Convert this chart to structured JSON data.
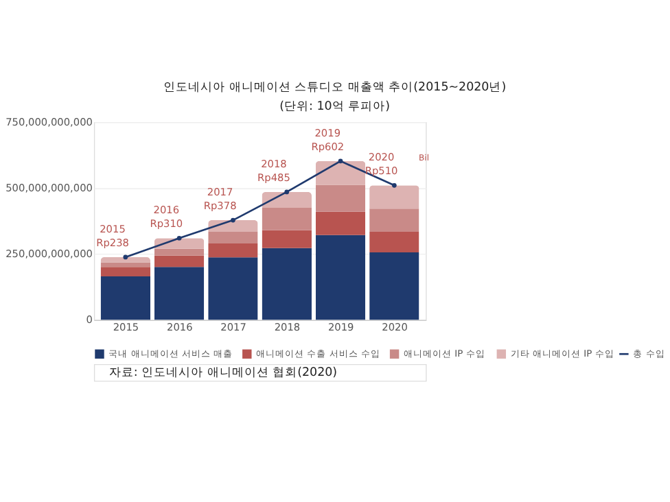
{
  "chart_data": {
    "type": "bar",
    "title": "인도네시아 애니메이션 스튜디오 매출액 추이(2015~2020년)",
    "subtitle": "(단위: 10억 루피아)",
    "categories": [
      "2015",
      "2016",
      "2017",
      "2018",
      "2019",
      "2020"
    ],
    "stacked": true,
    "series": [
      {
        "name": "국내 애니메이션 서비스 매출",
        "color": "#1f3a6e",
        "values": [
          165000000000,
          201000000000,
          237000000000,
          272000000000,
          322000000000,
          256000000000
        ]
      },
      {
        "name": "애니메이션 수출 서비스 수입",
        "color": "#b85450",
        "values": [
          36000000000,
          43000000000,
          53000000000,
          68000000000,
          88000000000,
          78000000000
        ]
      },
      {
        "name": "애니메이션 IP 수입",
        "color": "#c98a88",
        "values": [
          17000000000,
          26000000000,
          44000000000,
          85000000000,
          102000000000,
          88000000000
        ]
      },
      {
        "name": "기타 애니메이션 IP 수입",
        "color": "#ddb3b2",
        "values": [
          20000000000,
          40000000000,
          44000000000,
          60000000000,
          90000000000,
          88000000000
        ]
      },
      {
        "name": "총 수입",
        "type": "line",
        "color": "#1f3a6e",
        "marker": "circle",
        "values": [
          238000000000,
          310000000000,
          378000000000,
          485000000000,
          602000000000,
          510000000000
        ]
      }
    ],
    "ylim": [
      0,
      750000000000
    ],
    "yticks": [
      0,
      {
        "value": 250000000000,
        "label": "250,000,000,000"
      },
      {
        "value": 500000000000,
        "label": "500,000,000,000"
      },
      {
        "value": 750000000000,
        "label": "750,000,000,000"
      }
    ],
    "grid": "y",
    "legend": "bottom",
    "annotations": [
      {
        "text": "2015 Rp238",
        "x": "2015",
        "y": 238000000000
      },
      {
        "text": "2016 Rp310",
        "x": "2016",
        "y": 310000000000
      },
      {
        "text": "2017 Rp378",
        "x": "2017",
        "y": 378000000000
      },
      {
        "text": "2018 Rp485",
        "x": "2018",
        "y": 485000000000
      },
      {
        "text": "2019 Rp602",
        "x": "2019",
        "y": 602000000000
      },
      {
        "text": "2020 Rp510",
        "x": "2020",
        "y": 510000000000
      },
      "Bil",
      "자료: 인도네시아 애니메이션 협회(2020)"
    ]
  }
}
